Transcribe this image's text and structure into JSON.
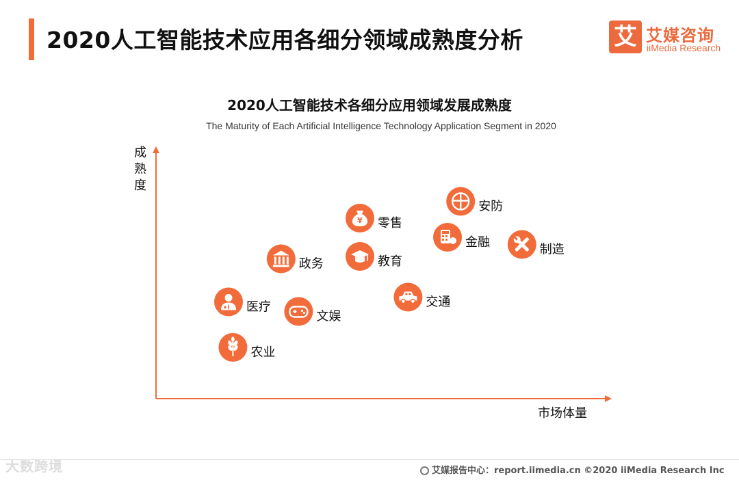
{
  "page": {
    "title": "2020人工智能技术应用各细分领域成熟度分析",
    "logo_glyph": "艾",
    "logo_cn": "艾媒咨询",
    "logo_en": "iiMedia Research"
  },
  "chart_data": {
    "type": "scatter",
    "title": "2020人工智能技术各细分应用领域发展成熟度",
    "subtitle": "The Maturity of Each Artificial Intelligence Technology Application Segment in 2020",
    "xlabel": "市场体量",
    "ylabel": "成熟度",
    "xlim": [
      0,
      100
    ],
    "ylim": [
      0,
      100
    ],
    "grid": false,
    "accent_color": "#f26b3a",
    "points": [
      {
        "label": "安防",
        "icon": "shield-icon",
        "x": 68,
        "y": 81
      },
      {
        "label": "零售",
        "icon": "money-bag-icon",
        "x": 45,
        "y": 74
      },
      {
        "label": "金融",
        "icon": "calculator-icon",
        "x": 65,
        "y": 66
      },
      {
        "label": "制造",
        "icon": "tools-icon",
        "x": 82,
        "y": 63
      },
      {
        "label": "政务",
        "icon": "government-building-icon",
        "x": 27,
        "y": 57
      },
      {
        "label": "教育",
        "icon": "graduation-cap-icon",
        "x": 45,
        "y": 58
      },
      {
        "label": "交通",
        "icon": "car-icon",
        "x": 56,
        "y": 41
      },
      {
        "label": "医疗",
        "icon": "doctor-icon",
        "x": 15,
        "y": 39
      },
      {
        "label": "文娱",
        "icon": "gamepad-icon",
        "x": 31,
        "y": 35
      },
      {
        "label": "农业",
        "icon": "wheat-icon",
        "x": 16,
        "y": 20
      }
    ]
  },
  "footer": {
    "watermark": "大数跨境",
    "source": "艾媒报告中心：report.iimedia.cn   ©2020  iiMedia Research  Inc"
  }
}
